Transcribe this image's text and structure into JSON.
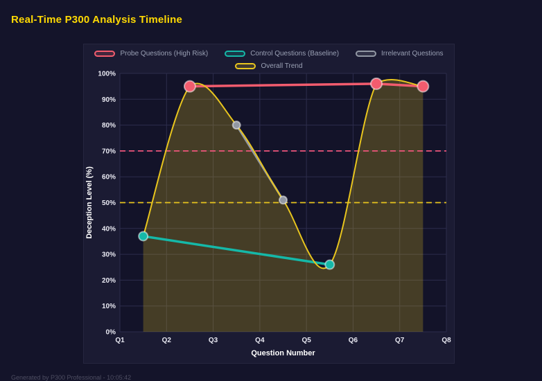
{
  "page": {
    "title": "Real-Time P300 Analysis Timeline",
    "footer": "Generated by P300 Professional - 10:05:42"
  },
  "colors": {
    "background": "#14142a",
    "panel": "#1b1b33",
    "plot_bg": "#131329",
    "grid": "#2d2d4c",
    "title": "#ffd903",
    "tick_text": "#e9e9f2",
    "axis_text": "#ffffff",
    "legend_text": "#9aa0b4",
    "probe": "#f25c6e",
    "control": "#15b8a8",
    "irrelevant": "#9298a4",
    "trend": "#e8c51e",
    "trend_fill": "rgba(232,197,30,0.24)",
    "threshold_high": "#f0567c",
    "threshold_mid": "#e8c51e",
    "marker_ring": "rgba(255,255,255,0.5)"
  },
  "chart_data": {
    "type": "line",
    "title": "Real-Time P300 Analysis Timeline",
    "xlabel": "Question Number",
    "ylabel": "Deception Level (%)",
    "x_ticks": [
      "Q1",
      "Q2",
      "Q3",
      "Q4",
      "Q5",
      "Q6",
      "Q7",
      "Q8"
    ],
    "xlim": [
      1,
      8
    ],
    "ylim": [
      0,
      100
    ],
    "y_tick_step": 10,
    "y_tick_suffix": "%",
    "grid": true,
    "legend_position": "top",
    "legend_rows": [
      [
        0,
        1,
        2
      ],
      [
        3
      ]
    ],
    "series": [
      {
        "name": "Probe Questions (High Risk)",
        "color": "#f25c6e",
        "line_width": 3.5,
        "points": [
          [
            2.5,
            95
          ],
          [
            6.5,
            96
          ],
          [
            7.5,
            95
          ]
        ],
        "marker_radius": 8
      },
      {
        "name": "Control Questions (Baseline)",
        "color": "#15b8a8",
        "line_width": 3.5,
        "points": [
          [
            1.5,
            37
          ],
          [
            5.5,
            26
          ]
        ],
        "marker_radius": 6.5
      },
      {
        "name": "Irrelevant Questions",
        "color": "#9298a4",
        "line_width": 3,
        "points": [
          [
            3.5,
            80
          ],
          [
            4.5,
            51
          ]
        ],
        "marker_radius": 5.5
      },
      {
        "name": "Overall Trend",
        "color": "#e8c51e",
        "line_width": 2,
        "points": [
          [
            1.5,
            37
          ],
          [
            2.5,
            95
          ],
          [
            3.5,
            80
          ],
          [
            4.5,
            51
          ],
          [
            5.5,
            26
          ],
          [
            6.5,
            96
          ],
          [
            7.5,
            95
          ]
        ],
        "smooth": true,
        "fill": true
      }
    ],
    "thresholds": [
      {
        "value": 70,
        "color": "#f0567c",
        "style": "dashed"
      },
      {
        "value": 50,
        "color": "#e8c51e",
        "style": "dashed"
      }
    ]
  }
}
